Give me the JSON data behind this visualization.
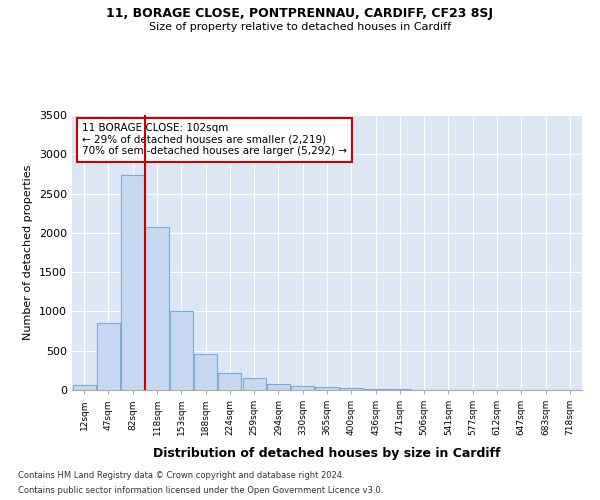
{
  "title1": "11, BORAGE CLOSE, PONTPRENNAU, CARDIFF, CF23 8SJ",
  "title2": "Size of property relative to detached houses in Cardiff",
  "xlabel": "Distribution of detached houses by size in Cardiff",
  "ylabel": "Number of detached properties",
  "categories": [
    "12sqm",
    "47sqm",
    "82sqm",
    "118sqm",
    "153sqm",
    "188sqm",
    "224sqm",
    "259sqm",
    "294sqm",
    "330sqm",
    "365sqm",
    "400sqm",
    "436sqm",
    "471sqm",
    "506sqm",
    "541sqm",
    "577sqm",
    "612sqm",
    "647sqm",
    "683sqm",
    "718sqm"
  ],
  "values": [
    60,
    850,
    2730,
    2075,
    1010,
    455,
    215,
    155,
    75,
    55,
    35,
    25,
    15,
    10,
    5,
    3,
    2,
    1,
    0,
    0,
    0
  ],
  "bar_color": "#c5d8f0",
  "bar_edge_color": "#7aadd4",
  "vline_color": "#cc0000",
  "vline_x_index": 2.5,
  "annotation_text": "11 BORAGE CLOSE: 102sqm\n← 29% of detached houses are smaller (2,219)\n70% of semi-detached houses are larger (5,292) →",
  "annotation_box_facecolor": "#ffffff",
  "annotation_box_edgecolor": "#cc0000",
  "ylim": [
    0,
    3500
  ],
  "yticks": [
    0,
    500,
    1000,
    1500,
    2000,
    2500,
    3000,
    3500
  ],
  "plot_bg_color": "#dce6f5",
  "fig_bg_color": "#ffffff",
  "footer1": "Contains HM Land Registry data © Crown copyright and database right 2024.",
  "footer2": "Contains public sector information licensed under the Open Government Licence v3.0."
}
